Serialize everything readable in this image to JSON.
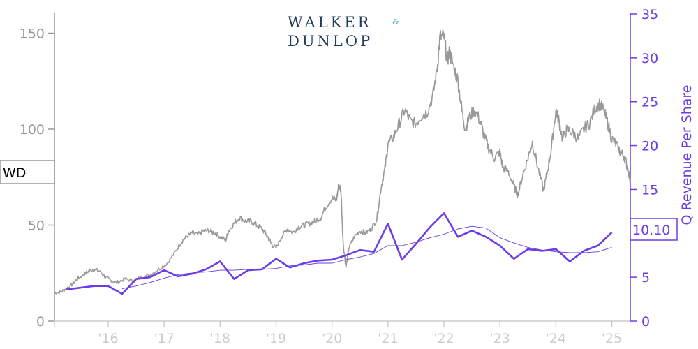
{
  "logo": {
    "line1": "WALKER",
    "amp": "&",
    "line2": "DUNLOP"
  },
  "colors": {
    "price": "#999999",
    "revenue": "#6A3DE8",
    "left_axis": "#999999",
    "x_axis": "#cccccc",
    "logo_dark": "#1F3A5A",
    "logo_accent": "#4FA8D8"
  },
  "chart_data": {
    "type": "line",
    "ticker_label": "WD",
    "last_revenue_label": "10.10",
    "left_axis": {
      "ticks": [
        "0",
        "50",
        "100",
        "150"
      ],
      "ylim": [
        0,
        160
      ],
      "label": ""
    },
    "right_axis": {
      "ticks": [
        "0",
        "5",
        "10",
        "15",
        "20",
        "25",
        "30",
        "35"
      ],
      "ylim": [
        0,
        35
      ],
      "label": "Q Revenue Per Share"
    },
    "x_axis": {
      "ticks": [
        "'16",
        "'17",
        "'18",
        "'19",
        "'20",
        "'21",
        "'22",
        "'23",
        "'24",
        "'25"
      ],
      "tick_years": [
        2016,
        2017,
        2018,
        2019,
        2020,
        2021,
        2022,
        2023,
        2024,
        2025
      ],
      "xlim": [
        2015.04,
        2025.33
      ]
    },
    "series": [
      {
        "kind": "price",
        "axis": "left",
        "points": [
          [
            2015.04,
            15
          ],
          [
            2015.15,
            15
          ],
          [
            2015.25,
            17
          ],
          [
            2015.35,
            19
          ],
          [
            2015.45,
            22
          ],
          [
            2015.55,
            24
          ],
          [
            2015.65,
            26
          ],
          [
            2015.75,
            27
          ],
          [
            2015.85,
            26
          ],
          [
            2015.95,
            23
          ],
          [
            2016.05,
            21
          ],
          [
            2016.15,
            20
          ],
          [
            2016.3,
            22
          ],
          [
            2016.45,
            21
          ],
          [
            2016.6,
            23
          ],
          [
            2016.75,
            24
          ],
          [
            2016.9,
            27
          ],
          [
            2017.05,
            30
          ],
          [
            2017.2,
            36
          ],
          [
            2017.3,
            41
          ],
          [
            2017.4,
            44
          ],
          [
            2017.5,
            46
          ],
          [
            2017.6,
            45
          ],
          [
            2017.7,
            47
          ],
          [
            2017.8,
            47
          ],
          [
            2017.9,
            46
          ],
          [
            2018.0,
            44
          ],
          [
            2018.1,
            42
          ],
          [
            2018.15,
            47
          ],
          [
            2018.25,
            51
          ],
          [
            2018.35,
            54
          ],
          [
            2018.45,
            52
          ],
          [
            2018.55,
            52
          ],
          [
            2018.65,
            50
          ],
          [
            2018.75,
            48
          ],
          [
            2018.85,
            44
          ],
          [
            2018.92,
            40
          ],
          [
            2019.0,
            38
          ],
          [
            2019.1,
            44
          ],
          [
            2019.2,
            48
          ],
          [
            2019.3,
            46
          ],
          [
            2019.4,
            49
          ],
          [
            2019.5,
            50
          ],
          [
            2019.6,
            51
          ],
          [
            2019.7,
            52
          ],
          [
            2019.8,
            54
          ],
          [
            2019.9,
            60
          ],
          [
            2020.0,
            64
          ],
          [
            2020.08,
            63
          ],
          [
            2020.12,
            71
          ],
          [
            2020.16,
            68
          ],
          [
            2020.2,
            40
          ],
          [
            2020.25,
            28
          ],
          [
            2020.3,
            38
          ],
          [
            2020.4,
            44
          ],
          [
            2020.5,
            47
          ],
          [
            2020.6,
            46
          ],
          [
            2020.7,
            48
          ],
          [
            2020.8,
            53
          ],
          [
            2020.88,
            70
          ],
          [
            2020.95,
            80
          ],
          [
            2021.0,
            92
          ],
          [
            2021.1,
            96
          ],
          [
            2021.2,
            103
          ],
          [
            2021.3,
            110
          ],
          [
            2021.4,
            104
          ],
          [
            2021.5,
            103
          ],
          [
            2021.6,
            107
          ],
          [
            2021.7,
            109
          ],
          [
            2021.8,
            117
          ],
          [
            2021.88,
            132
          ],
          [
            2021.93,
            148
          ],
          [
            2022.0,
            148
          ],
          [
            2022.06,
            136
          ],
          [
            2022.1,
            140
          ],
          [
            2022.15,
            135
          ],
          [
            2022.25,
            125
          ],
          [
            2022.32,
            110
          ],
          [
            2022.38,
            100
          ],
          [
            2022.45,
            106
          ],
          [
            2022.55,
            110
          ],
          [
            2022.65,
            104
          ],
          [
            2022.72,
            96
          ],
          [
            2022.8,
            90
          ],
          [
            2022.9,
            85
          ],
          [
            2023.0,
            88
          ],
          [
            2023.05,
            80
          ],
          [
            2023.15,
            78
          ],
          [
            2023.25,
            70
          ],
          [
            2023.32,
            66
          ],
          [
            2023.4,
            75
          ],
          [
            2023.5,
            85
          ],
          [
            2023.58,
            93
          ],
          [
            2023.68,
            80
          ],
          [
            2023.78,
            68
          ],
          [
            2023.85,
            78
          ],
          [
            2023.92,
            90
          ],
          [
            2024.0,
            110
          ],
          [
            2024.05,
            105
          ],
          [
            2024.12,
            95
          ],
          [
            2024.2,
            100
          ],
          [
            2024.3,
            98
          ],
          [
            2024.4,
            95
          ],
          [
            2024.5,
            100
          ],
          [
            2024.6,
            103
          ],
          [
            2024.7,
            111
          ],
          [
            2024.78,
            113
          ],
          [
            2024.85,
            110
          ],
          [
            2024.92,
            104
          ],
          [
            2025.0,
            95
          ],
          [
            2025.08,
            92
          ],
          [
            2025.15,
            88
          ],
          [
            2025.22,
            86
          ],
          [
            2025.28,
            80
          ],
          [
            2025.33,
            73
          ]
        ]
      },
      {
        "kind": "revenue",
        "axis": "right",
        "points": [
          [
            2015.25,
            3.6
          ],
          [
            2015.5,
            3.8
          ],
          [
            2015.75,
            4.0
          ],
          [
            2016.0,
            4.0
          ],
          [
            2016.25,
            3.1
          ],
          [
            2016.5,
            4.8
          ],
          [
            2016.75,
            5.0
          ],
          [
            2017.0,
            5.8
          ],
          [
            2017.25,
            5.1
          ],
          [
            2017.5,
            5.4
          ],
          [
            2017.75,
            5.9
          ],
          [
            2018.0,
            6.8
          ],
          [
            2018.25,
            4.8
          ],
          [
            2018.5,
            5.8
          ],
          [
            2018.75,
            5.9
          ],
          [
            2019.0,
            7.1
          ],
          [
            2019.25,
            6.1
          ],
          [
            2019.5,
            6.6
          ],
          [
            2019.75,
            6.9
          ],
          [
            2020.0,
            7.0
          ],
          [
            2020.25,
            7.5
          ],
          [
            2020.5,
            8.1
          ],
          [
            2020.75,
            7.9
          ],
          [
            2021.0,
            11.1
          ],
          [
            2021.25,
            7.0
          ],
          [
            2021.5,
            8.8
          ],
          [
            2021.75,
            10.7
          ],
          [
            2022.0,
            12.3
          ],
          [
            2022.25,
            9.6
          ],
          [
            2022.5,
            10.3
          ],
          [
            2022.75,
            9.6
          ],
          [
            2023.0,
            8.6
          ],
          [
            2023.25,
            7.1
          ],
          [
            2023.5,
            8.2
          ],
          [
            2023.75,
            8.0
          ],
          [
            2024.0,
            8.2
          ],
          [
            2024.25,
            6.8
          ],
          [
            2024.5,
            8.0
          ],
          [
            2024.75,
            8.6
          ],
          [
            2025.0,
            10.1
          ]
        ]
      },
      {
        "kind": "revenue_trend",
        "axis": "right",
        "points": [
          [
            2016.25,
            3.7
          ],
          [
            2016.5,
            4.0
          ],
          [
            2016.75,
            4.4
          ],
          [
            2017.0,
            4.9
          ],
          [
            2017.25,
            5.3
          ],
          [
            2017.5,
            5.5
          ],
          [
            2017.75,
            5.6
          ],
          [
            2018.0,
            5.8
          ],
          [
            2018.25,
            5.8
          ],
          [
            2018.5,
            5.9
          ],
          [
            2018.75,
            5.9
          ],
          [
            2019.0,
            6.0
          ],
          [
            2019.25,
            6.3
          ],
          [
            2019.5,
            6.4
          ],
          [
            2019.75,
            6.6
          ],
          [
            2020.0,
            6.6
          ],
          [
            2020.25,
            7.0
          ],
          [
            2020.5,
            7.3
          ],
          [
            2020.75,
            7.7
          ],
          [
            2021.0,
            8.6
          ],
          [
            2021.25,
            8.6
          ],
          [
            2021.5,
            9.0
          ],
          [
            2021.75,
            9.5
          ],
          [
            2022.0,
            9.9
          ],
          [
            2022.25,
            10.5
          ],
          [
            2022.5,
            10.8
          ],
          [
            2022.75,
            10.6
          ],
          [
            2023.0,
            9.5
          ],
          [
            2023.25,
            8.9
          ],
          [
            2023.5,
            8.4
          ],
          [
            2023.75,
            8.1
          ],
          [
            2024.0,
            7.9
          ],
          [
            2024.25,
            7.8
          ],
          [
            2024.5,
            7.8
          ],
          [
            2024.75,
            7.9
          ],
          [
            2025.0,
            8.4
          ]
        ]
      }
    ]
  }
}
